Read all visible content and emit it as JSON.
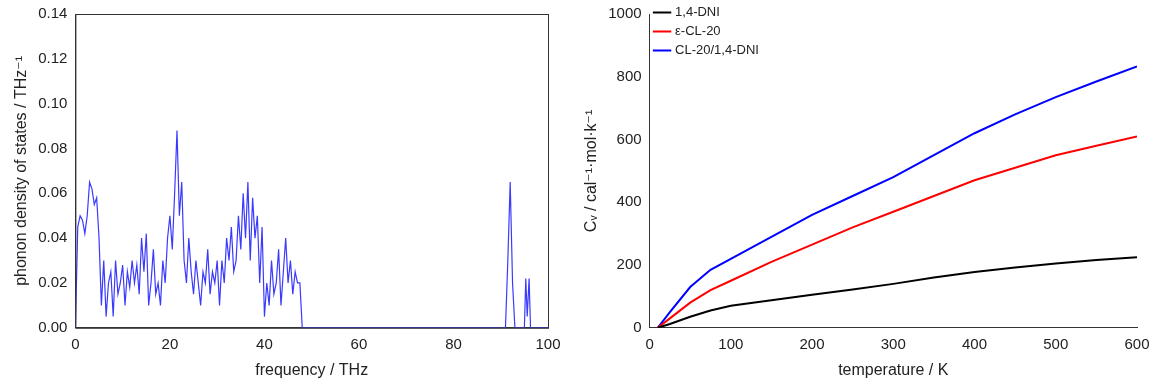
{
  "chart_data": [
    {
      "type": "line",
      "x_label": "frequency / THz",
      "y_label": "phonon density of states / THz⁻¹",
      "x": [
        0,
        0.5,
        1,
        1.5,
        2,
        2.5,
        3,
        3.5,
        4,
        4.5,
        5,
        5.5,
        6,
        6.5,
        7,
        7.5,
        8,
        8.5,
        9,
        9.5,
        10,
        10.5,
        11,
        11.5,
        12,
        12.5,
        13,
        13.5,
        14,
        14.5,
        15,
        15.5,
        16,
        16.5,
        17,
        17.5,
        18,
        18.5,
        19,
        19.5,
        20,
        20.5,
        21,
        21.5,
        22,
        22.5,
        23,
        23.5,
        24,
        24.5,
        25,
        25.5,
        26,
        26.5,
        27,
        27.5,
        28,
        28.5,
        29,
        29.5,
        30,
        30.5,
        31,
        31.5,
        32,
        32.5,
        33,
        33.5,
        34,
        34.5,
        35,
        35.5,
        36,
        36.5,
        37,
        37.5,
        38,
        38.5,
        39,
        39.5,
        40,
        40.5,
        41,
        41.5,
        42,
        42.5,
        43,
        43.5,
        44,
        44.5,
        45,
        45.5,
        46,
        46.5,
        47,
        47.5,
        48,
        60,
        91,
        91.5,
        92,
        92.5,
        93,
        95,
        95.3,
        95.6,
        96,
        96.3,
        100
      ],
      "values": [
        0,
        0.045,
        0.05,
        0.048,
        0.042,
        0.05,
        0.065,
        0.062,
        0.055,
        0.058,
        0.04,
        0.01,
        0.03,
        0.005,
        0.02,
        0.025,
        0.005,
        0.03,
        0.015,
        0.02,
        0.028,
        0.01,
        0.025,
        0.018,
        0.03,
        0.02,
        0.028,
        0.015,
        0.04,
        0.025,
        0.042,
        0.01,
        0.02,
        0.035,
        0.015,
        0.02,
        0.01,
        0.03,
        0.02,
        0.04,
        0.05,
        0.035,
        0.06,
        0.088,
        0.05,
        0.065,
        0.03,
        0.02,
        0.04,
        0.025,
        0.015,
        0.03,
        0.02,
        0.01,
        0.025,
        0.02,
        0.035,
        0.015,
        0.025,
        0.02,
        0.03,
        0.01,
        0.03,
        0.02,
        0.04,
        0.03,
        0.045,
        0.025,
        0.03,
        0.05,
        0.035,
        0.06,
        0.04,
        0.065,
        0.03,
        0.058,
        0.04,
        0.05,
        0.02,
        0.045,
        0.005,
        0.02,
        0.01,
        0.03,
        0.015,
        0.02,
        0.035,
        0.01,
        0.025,
        0.04,
        0.02,
        0.03,
        0.015,
        0.025,
        0.02,
        0.02,
        0,
        0,
        0,
        0.03,
        0.065,
        0.02,
        0,
        0,
        0.022,
        0.005,
        0.022,
        0,
        0
      ],
      "color": "#3a3aff",
      "xlim": [
        0,
        100
      ],
      "xticks": [
        0,
        20,
        40,
        60,
        80,
        100
      ],
      "ylim": [
        0,
        0.14
      ],
      "yticks": [
        {
          "value": 0,
          "label": "0.00"
        },
        {
          "value": 0.02,
          "label": "0.02"
        },
        {
          "value": 0.04,
          "label": "0.04"
        },
        {
          "value": 0.06,
          "label": "0.06"
        },
        {
          "value": 0.08,
          "label": "0.08"
        },
        {
          "value": 0.1,
          "label": "0.10"
        },
        {
          "value": 0.12,
          "label": "0.12"
        },
        {
          "value": 0.14,
          "label": "0.14"
        }
      ],
      "grid": false
    },
    {
      "type": "line",
      "x_label": "temperature / K",
      "y_label": "Cᵥ / cal⁻¹·mol·k⁻¹",
      "x": [
        10,
        25,
        50,
        75,
        100,
        150,
        200,
        250,
        300,
        350,
        400,
        450,
        500,
        550,
        600
      ],
      "series": [
        {
          "name": "1,4-DNI",
          "color": "#000000",
          "values": [
            0,
            12,
            35,
            55,
            70,
            88,
            105,
            122,
            140,
            160,
            178,
            192,
            205,
            216,
            225
          ]
        },
        {
          "name": "ε-CL-20",
          "color": "#ff0000",
          "values": [
            0,
            30,
            80,
            120,
            150,
            210,
            265,
            320,
            370,
            420,
            470,
            510,
            550,
            580,
            610
          ]
        },
        {
          "name": "CL-20/1,4-DNI",
          "color": "#0000ff",
          "values": [
            0,
            50,
            130,
            185,
            220,
            290,
            360,
            420,
            480,
            550,
            620,
            680,
            735,
            785,
            833
          ]
        }
      ],
      "xlim": [
        0,
        600
      ],
      "xticks": [
        0,
        100,
        200,
        300,
        400,
        500,
        600
      ],
      "ylim": [
        0,
        1000
      ],
      "yticks": [
        0,
        200,
        400,
        600,
        800,
        1000
      ],
      "legend": "top-left",
      "grid": false
    }
  ]
}
